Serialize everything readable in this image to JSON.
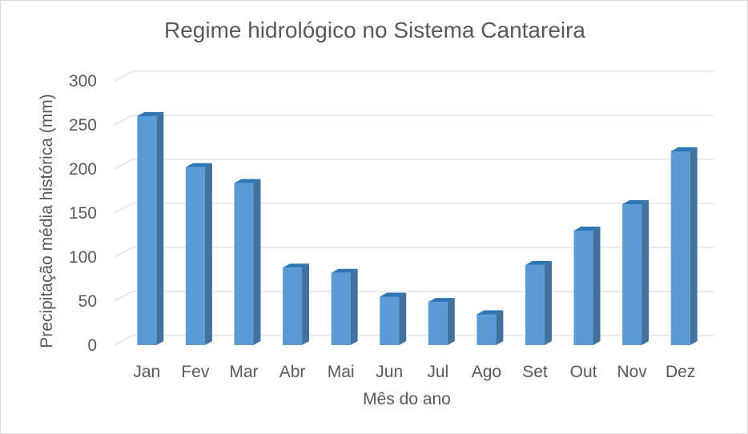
{
  "chart_data": {
    "type": "bar",
    "style": "3d-clustered-column",
    "title": "Regime hidrológico no Sistema Cantareira",
    "xlabel": "Mês do ano",
    "ylabel": "Precipitação média histórica (mm)",
    "categories": [
      "Jan",
      "Fev",
      "Mar",
      "Abr",
      "Mai",
      "Jun",
      "Jul",
      "Ago",
      "Set",
      "Out",
      "Nov",
      "Dez"
    ],
    "values": [
      260,
      202,
      184,
      88,
      82,
      55,
      49,
      35,
      91,
      130,
      160,
      220
    ],
    "ylim": [
      0,
      300
    ],
    "yticks": [
      "0",
      "50",
      "100",
      "150",
      "200",
      "250",
      "300"
    ],
    "grid": true,
    "legend": "none",
    "colors": {
      "bar_front": "#5b9bd5",
      "bar_side": "#41719c",
      "bar_top": "#2e75b6",
      "grid": "#d9d9d9",
      "text": "#595959"
    }
  }
}
